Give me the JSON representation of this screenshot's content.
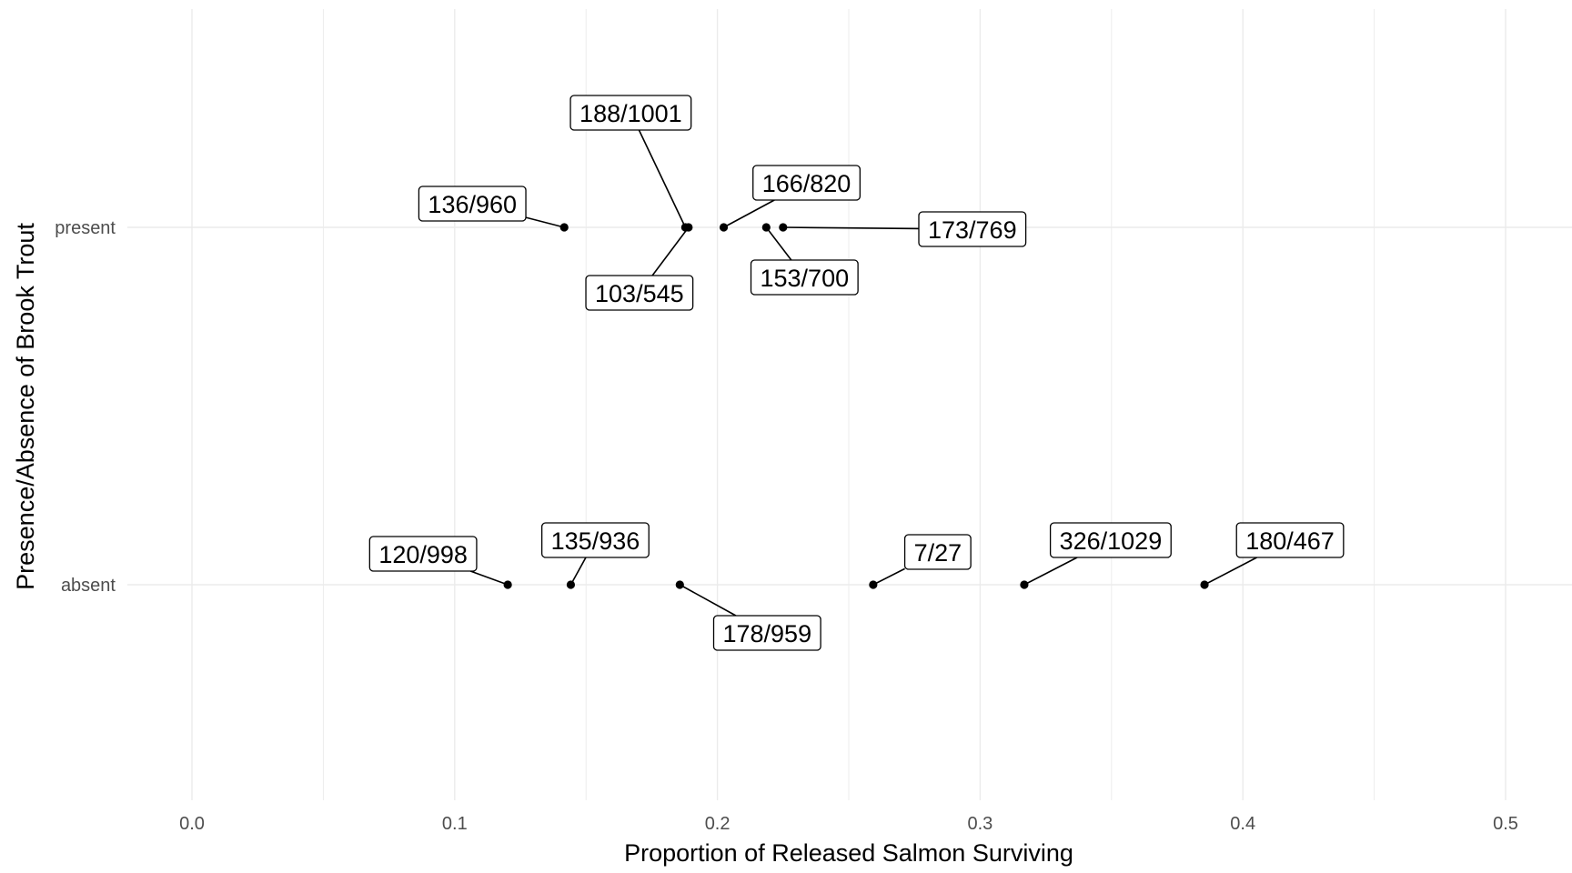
{
  "chart_data": {
    "type": "scatter",
    "xlabel": "Proportion of Released Salmon Surviving",
    "ylabel": "Presence/Absence of Brook Trout",
    "xlim": [
      -0.05,
      0.52
    ],
    "x_ticks": [
      "0.0",
      "0.1",
      "0.2",
      "0.3",
      "0.4",
      "0.5"
    ],
    "x_tick_values": [
      0.0,
      0.1,
      0.2,
      0.3,
      0.4,
      0.5
    ],
    "categories": [
      "absent",
      "present"
    ],
    "grid": true,
    "points": [
      {
        "category": "present",
        "x": 0.1417,
        "label": "136/960"
      },
      {
        "category": "present",
        "x": 0.1878,
        "label": "188/1001"
      },
      {
        "category": "present",
        "x": 0.189,
        "label": "103/545"
      },
      {
        "category": "present",
        "x": 0.2024,
        "label": "166/820"
      },
      {
        "category": "present",
        "x": 0.2186,
        "label": "153/700"
      },
      {
        "category": "present",
        "x": 0.225,
        "label": "173/769"
      },
      {
        "category": "absent",
        "x": 0.1202,
        "label": "120/998"
      },
      {
        "category": "absent",
        "x": 0.1442,
        "label": "135/936"
      },
      {
        "category": "absent",
        "x": 0.1857,
        "label": "178/959"
      },
      {
        "category": "absent",
        "x": 0.2593,
        "label": "7/27"
      },
      {
        "category": "absent",
        "x": 0.3168,
        "label": "326/1029"
      },
      {
        "category": "absent",
        "x": 0.3854,
        "label": "180/467"
      }
    ],
    "colors": {
      "grid": "#ebebeb",
      "point": "#000000",
      "label_border": "#000000",
      "tick_text": "#4d4d4d"
    }
  }
}
